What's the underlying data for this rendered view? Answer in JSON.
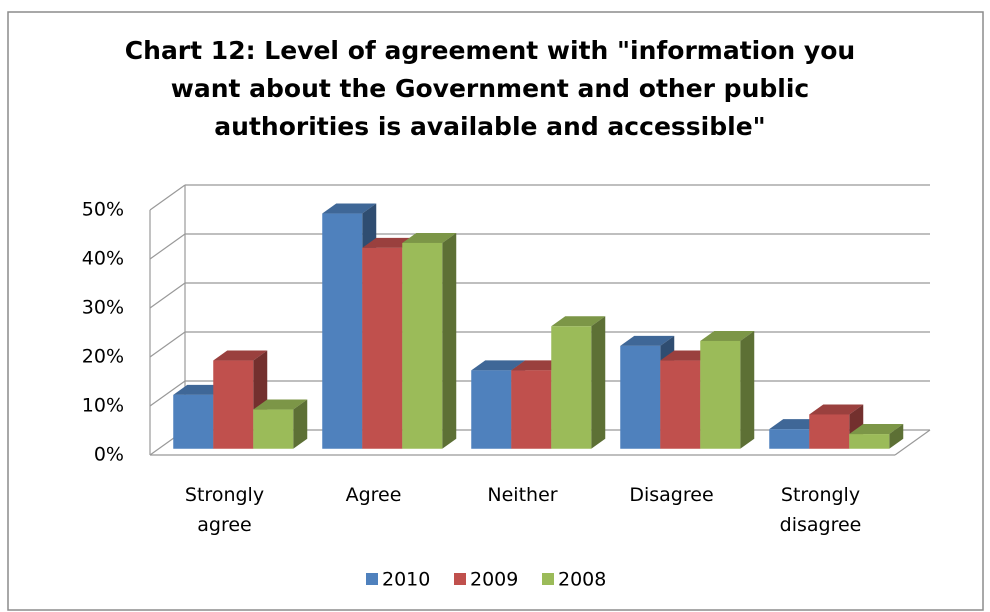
{
  "chart_data": {
    "type": "bar3d",
    "title": [
      "Chart 12: Level of agreement with \"information you",
      "want about the Government and other public",
      "authorities is available and accessible\""
    ],
    "categories": [
      "Strongly agree",
      "Agree",
      "Neither",
      "Disagree",
      "Strongly disagree"
    ],
    "series": [
      {
        "name": "2010",
        "color": "#4f81bd",
        "values": [
          11,
          48,
          16,
          21,
          4
        ]
      },
      {
        "name": "2009",
        "color": "#c0504d",
        "values": [
          18,
          41,
          16,
          18,
          7
        ]
      },
      {
        "name": "2008",
        "color": "#9bbb59",
        "values": [
          8,
          42,
          25,
          22,
          3
        ]
      }
    ],
    "ylim": [
      0,
      50
    ],
    "yticks": [
      {
        "value": 0,
        "label": "0%"
      },
      {
        "value": 10,
        "label": "10%"
      },
      {
        "value": 20,
        "label": "20%"
      },
      {
        "value": 30,
        "label": "30%"
      },
      {
        "value": 40,
        "label": "40%"
      },
      {
        "value": 50,
        "label": "50%"
      }
    ],
    "grid": true,
    "legend": "bottom"
  }
}
